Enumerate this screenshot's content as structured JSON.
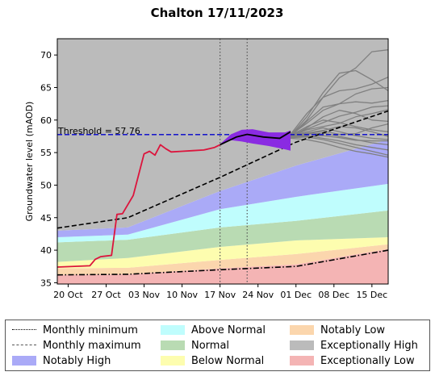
{
  "chart_data": {
    "type": "area",
    "title": "Chalton 17/11/2023",
    "xlabel": "",
    "ylabel": "Groundwater level (mAOD)",
    "xlim": [
      "2023-10-18",
      "2023-12-18"
    ],
    "ylim": [
      34.8,
      72.5
    ],
    "x_tick_labels": [
      "20 Oct",
      "27 Oct",
      "03 Nov",
      "10 Nov",
      "17 Nov",
      "24 Nov",
      "01 Dec",
      "08 Dec",
      "15 Dec"
    ],
    "x_tick_dates": [
      "2023-10-20",
      "2023-10-27",
      "2023-11-03",
      "2023-11-10",
      "2023-11-17",
      "2023-11-24",
      "2023-12-01",
      "2023-12-08",
      "2023-12-15"
    ],
    "y_ticks": [
      35,
      40,
      45,
      50,
      55,
      60,
      65,
      70
    ],
    "vertical_lines": [
      "2023-11-17",
      "2023-11-22"
    ],
    "threshold": {
      "label": "Threshold = 57.76",
      "value": 57.76,
      "color": "#0000cc"
    },
    "band_x": [
      "2023-10-18",
      "2023-10-31",
      "2023-11-17",
      "2023-12-01",
      "2023-12-18"
    ],
    "bands": [
      {
        "name": "Exceptionally Low",
        "color": "#f4b4b4",
        "lower": [
          34.8,
          34.8,
          34.8,
          34.8,
          34.8
        ],
        "upper": [
          36.2,
          36.3,
          37.2,
          37.8,
          40.2
        ]
      },
      {
        "name": "Notably Low",
        "color": "#fbd6ad",
        "lower": [
          36.2,
          36.3,
          37.2,
          37.8,
          40.2
        ],
        "upper": [
          37.2,
          37.3,
          38.5,
          39.4,
          40.9
        ]
      },
      {
        "name": "Below Normal",
        "color": "#fdfdaf",
        "lower": [
          37.2,
          37.3,
          38.5,
          39.4,
          40.9
        ],
        "upper": [
          38.2,
          38.8,
          40.5,
          41.5,
          42.0
        ]
      },
      {
        "name": "Normal",
        "color": "#b9dbb3",
        "lower": [
          38.2,
          38.8,
          40.5,
          41.5,
          42.0
        ],
        "upper": [
          41.2,
          41.6,
          43.5,
          44.5,
          46.1
        ]
      },
      {
        "name": "Above Normal",
        "color": "#bffdfd",
        "lower": [
          41.2,
          41.6,
          43.5,
          44.5,
          46.1
        ],
        "upper": [
          42.0,
          42.4,
          46.3,
          48.2,
          50.2
        ]
      },
      {
        "name": "Notably High",
        "color": "#aaaaf7",
        "lower": [
          42.0,
          42.4,
          46.3,
          48.2,
          50.2
        ],
        "upper": [
          43.0,
          43.5,
          49.1,
          53.0,
          57.0
        ]
      },
      {
        "name": "Exceptionally High",
        "color": "#bbbbbb",
        "lower": [
          43.0,
          43.5,
          49.1,
          53.0,
          57.0
        ],
        "upper": [
          72.5,
          72.5,
          72.5,
          72.5,
          72.5
        ]
      }
    ],
    "monthly_minimum": {
      "name": "Monthly minimum",
      "x": [
        "2023-10-18",
        "2023-10-31",
        "2023-11-17",
        "2023-12-01",
        "2023-12-18"
      ],
      "y": [
        36.2,
        36.3,
        37.0,
        37.5,
        40.0
      ]
    },
    "monthly_maximum": {
      "name": "Monthly maximum",
      "x": [
        "2023-10-18",
        "2023-10-31",
        "2023-11-17",
        "2023-12-01",
        "2023-12-18"
      ],
      "y": [
        43.4,
        45.0,
        51.2,
        56.6,
        61.4
      ]
    },
    "observed": {
      "color": "#dc143c",
      "x": [
        "2023-10-18",
        "2023-10-24",
        "2023-10-25",
        "2023-10-26",
        "2023-10-28",
        "2023-10-29",
        "2023-10-30",
        "2023-11-01",
        "2023-11-02",
        "2023-11-03",
        "2023-11-04",
        "2023-11-05",
        "2023-11-06",
        "2023-11-07",
        "2023-11-08",
        "2023-11-10",
        "2023-11-12",
        "2023-11-14",
        "2023-11-16",
        "2023-11-17"
      ],
      "y": [
        37.4,
        37.6,
        38.6,
        39.0,
        39.2,
        45.5,
        45.6,
        48.4,
        51.6,
        54.8,
        55.2,
        54.6,
        56.2,
        55.6,
        55.1,
        55.2,
        55.3,
        55.4,
        55.8,
        56.2
      ]
    },
    "forecast_median": {
      "color": "#000000",
      "x": [
        "2023-11-17",
        "2023-11-20",
        "2023-11-22",
        "2023-11-25",
        "2023-11-28",
        "2023-11-30"
      ],
      "y": [
        56.2,
        57.4,
        57.8,
        57.4,
        57.2,
        58.2
      ]
    },
    "forecast_envelope": {
      "color": "#8a2be2",
      "x": [
        "2023-11-17",
        "2023-11-19",
        "2023-11-21",
        "2023-11-23",
        "2023-11-26",
        "2023-11-29",
        "2023-11-30"
      ],
      "upper": [
        56.3,
        57.8,
        58.5,
        58.6,
        58.1,
        58.1,
        58.4
      ],
      "lower": [
        56.1,
        56.9,
        56.7,
        56.4,
        56.0,
        55.5,
        55.3
      ]
    },
    "ensemble": {
      "color": "#808080",
      "x": [
        "2023-11-30",
        "2023-12-03",
        "2023-12-06",
        "2023-12-09",
        "2023-12-12",
        "2023-12-15",
        "2023-12-18"
      ],
      "members": [
        [
          57.6,
          60.0,
          63.5,
          66.5,
          68.0,
          70.5,
          70.8
        ],
        [
          57.6,
          60.5,
          64.2,
          67.2,
          67.6,
          66.2,
          64.5
        ],
        [
          57.8,
          61.0,
          63.5,
          64.5,
          64.8,
          65.5,
          66.6
        ],
        [
          57.5,
          59.8,
          62.0,
          62.5,
          62.8,
          62.6,
          63.0
        ],
        [
          57.7,
          59.5,
          61.5,
          62.5,
          64.0,
          64.8,
          65.0
        ],
        [
          57.4,
          58.8,
          60.5,
          61.5,
          61.0,
          60.0,
          59.8
        ],
        [
          57.6,
          59.0,
          60.0,
          59.6,
          59.0,
          58.5,
          58.2
        ],
        [
          57.5,
          58.5,
          59.0,
          59.5,
          60.5,
          61.0,
          61.6
        ],
        [
          57.5,
          58.2,
          58.8,
          58.2,
          57.6,
          57.2,
          57.0
        ],
        [
          57.4,
          57.8,
          58.0,
          57.5,
          57.0,
          56.5,
          56.2
        ],
        [
          57.4,
          57.6,
          57.2,
          56.8,
          56.2,
          55.8,
          55.4
        ],
        [
          57.3,
          57.4,
          57.0,
          56.4,
          55.8,
          55.2,
          54.6
        ],
        [
          57.2,
          57.0,
          56.5,
          55.8,
          55.2,
          54.8,
          54.3
        ],
        [
          57.5,
          58.0,
          58.4,
          59.0,
          58.8,
          58.2,
          57.5
        ],
        [
          57.6,
          58.6,
          59.6,
          60.6,
          61.2,
          62.0,
          62.2
        ],
        [
          57.5,
          57.9,
          58.3,
          57.8,
          57.9,
          58.8,
          59.4
        ],
        [
          57.4,
          57.5,
          57.6,
          57.3,
          56.9,
          56.8,
          56.8
        ]
      ]
    },
    "legend": {
      "placement": "below",
      "items": [
        {
          "label": "Monthly minimum",
          "kind": "dashdot",
          "color": "#000000"
        },
        {
          "label": "Above Normal",
          "kind": "patch",
          "color": "#bffdfd"
        },
        {
          "label": "Notably Low",
          "kind": "patch",
          "color": "#fbd6ad"
        },
        {
          "label": "Monthly maximum",
          "kind": "dashed",
          "color": "#555555"
        },
        {
          "label": "Normal",
          "kind": "patch",
          "color": "#b9dbb3"
        },
        {
          "label": "Exceptionally High",
          "kind": "patch",
          "color": "#bbbbbb"
        },
        {
          "label": "Notably High",
          "kind": "patch",
          "color": "#aaaaf7"
        },
        {
          "label": "Below Normal",
          "kind": "patch",
          "color": "#fdfdaf"
        },
        {
          "label": "Exceptionally Low",
          "kind": "patch",
          "color": "#f4b4b4"
        }
      ]
    }
  }
}
